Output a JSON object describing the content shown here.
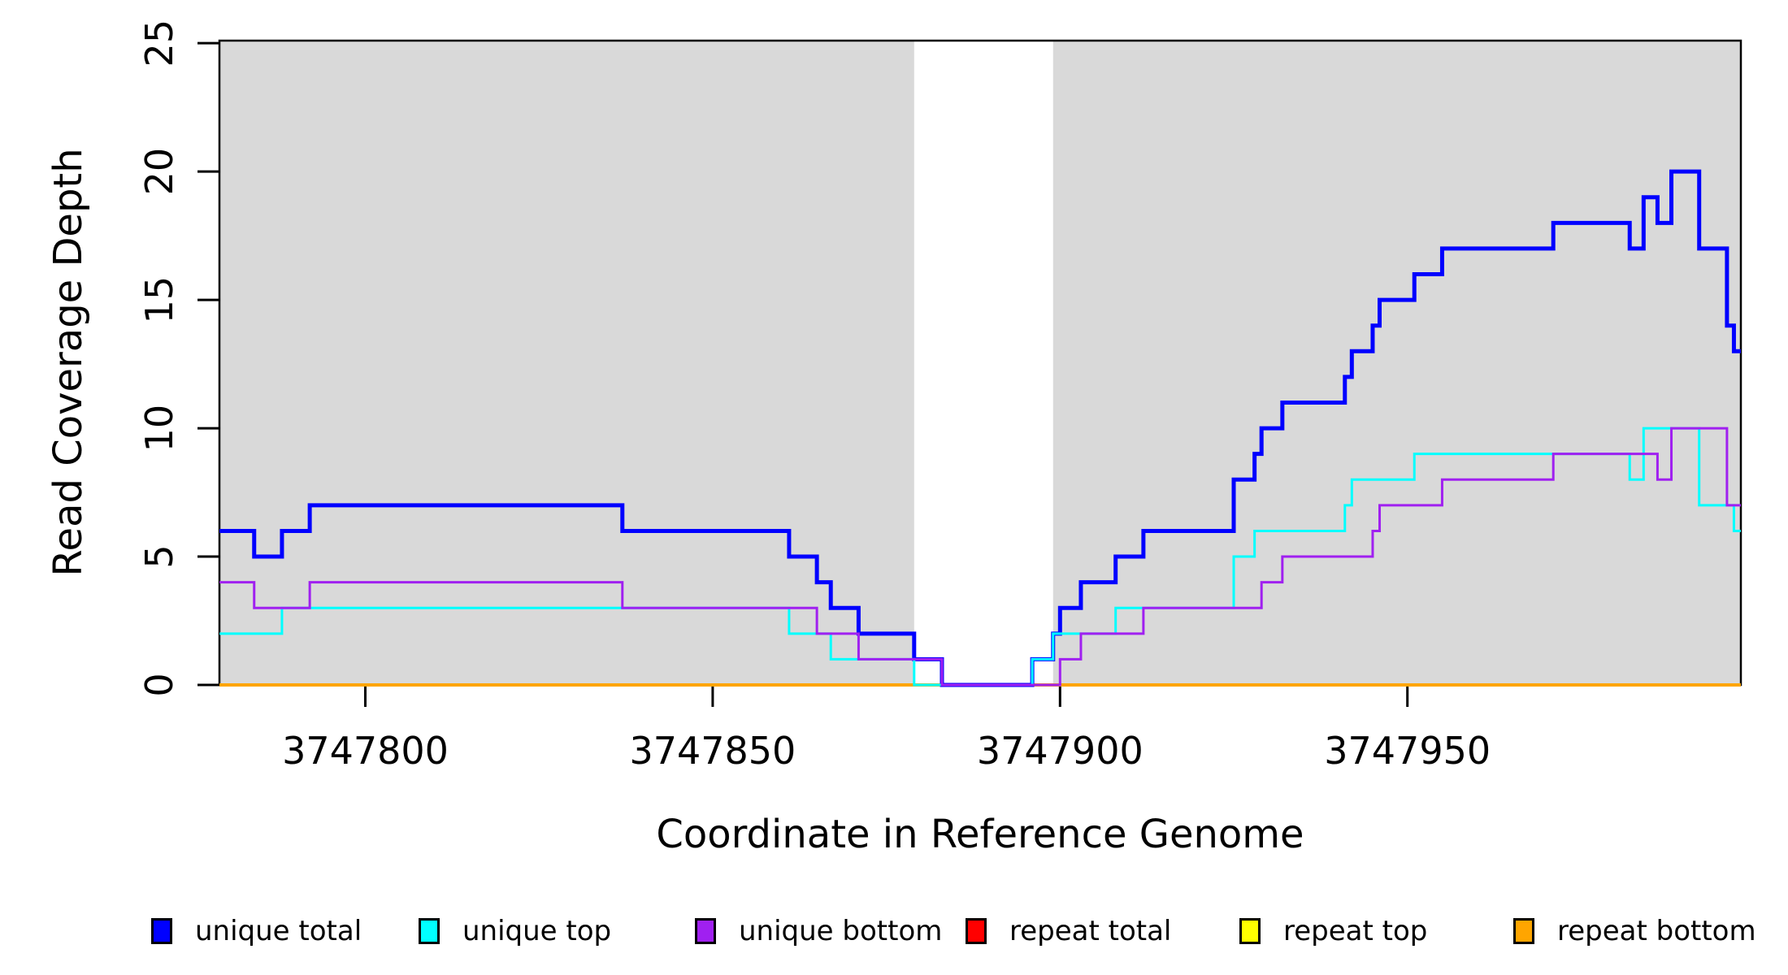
{
  "chart_data": {
    "type": "step-line",
    "title": "",
    "xlabel": "Coordinate in Reference Genome",
    "ylabel": "Read Coverage Depth",
    "xlim": [
      3747779,
      3747998
    ],
    "ylim": [
      0,
      25.1
    ],
    "xticks": [
      3747800,
      3747850,
      3747900,
      3747950
    ],
    "yticks": [
      0,
      5,
      10,
      15,
      20,
      25
    ],
    "grid": false,
    "shaded_regions": {
      "meaning": "repeat regions",
      "color": "#D9D9D9",
      "ranges": [
        [
          3747779,
          3747879
        ],
        [
          3747899,
          3747998
        ]
      ]
    },
    "series": [
      {
        "name": "unique total",
        "color": "#0000FF",
        "line_width": 5,
        "steps": [
          [
            3747779,
            6
          ],
          [
            3747784,
            5
          ],
          [
            3747788,
            6
          ],
          [
            3747792,
            7
          ],
          [
            3747837,
            6
          ],
          [
            3747861,
            5
          ],
          [
            3747865,
            4
          ],
          [
            3747867,
            3
          ],
          [
            3747871,
            2
          ],
          [
            3747879,
            1
          ],
          [
            3747883,
            0
          ],
          [
            3747896,
            1
          ],
          [
            3747899,
            2
          ],
          [
            3747900,
            3
          ],
          [
            3747903,
            4
          ],
          [
            3747908,
            5
          ],
          [
            3747912,
            6
          ],
          [
            3747925,
            8
          ],
          [
            3747928,
            9
          ],
          [
            3747929,
            10
          ],
          [
            3747932,
            11
          ],
          [
            3747941,
            12
          ],
          [
            3747942,
            13
          ],
          [
            3747945,
            14
          ],
          [
            3747946,
            15
          ],
          [
            3747951,
            16
          ],
          [
            3747955,
            17
          ],
          [
            3747971,
            18
          ],
          [
            3747982,
            17
          ],
          [
            3747984,
            19
          ],
          [
            3747986,
            18
          ],
          [
            3747988,
            20
          ],
          [
            3747992,
            17
          ],
          [
            3747996,
            14
          ],
          [
            3747997,
            13
          ],
          [
            3747998,
            13
          ]
        ]
      },
      {
        "name": "unique top",
        "color": "#00FFFF",
        "line_width": 3,
        "steps": [
          [
            3747779,
            2
          ],
          [
            3747788,
            3
          ],
          [
            3747861,
            2
          ],
          [
            3747867,
            1
          ],
          [
            3747879,
            0
          ],
          [
            3747896,
            1
          ],
          [
            3747899,
            2
          ],
          [
            3747908,
            3
          ],
          [
            3747925,
            5
          ],
          [
            3747928,
            6
          ],
          [
            3747941,
            7
          ],
          [
            3747942,
            8
          ],
          [
            3747951,
            9
          ],
          [
            3747982,
            8
          ],
          [
            3747984,
            10
          ],
          [
            3747992,
            7
          ],
          [
            3747997,
            6
          ],
          [
            3747998,
            6
          ]
        ]
      },
      {
        "name": "unique bottom",
        "color": "#A020F0",
        "line_width": 3,
        "steps": [
          [
            3747779,
            4
          ],
          [
            3747784,
            3
          ],
          [
            3747792,
            4
          ],
          [
            3747837,
            3
          ],
          [
            3747865,
            2
          ],
          [
            3747871,
            1
          ],
          [
            3747883,
            0
          ],
          [
            3747900,
            1
          ],
          [
            3747903,
            2
          ],
          [
            3747912,
            3
          ],
          [
            3747929,
            4
          ],
          [
            3747932,
            5
          ],
          [
            3747945,
            6
          ],
          [
            3747946,
            7
          ],
          [
            3747955,
            8
          ],
          [
            3747971,
            9
          ],
          [
            3747986,
            8
          ],
          [
            3747988,
            10
          ],
          [
            3747996,
            7
          ],
          [
            3747998,
            7
          ]
        ]
      },
      {
        "name": "repeat total",
        "color": "#FF0000",
        "line_width": 3,
        "steps": [
          [
            3747779,
            0
          ],
          [
            3747998,
            0
          ]
        ]
      },
      {
        "name": "repeat top",
        "color": "#FFFF00",
        "line_width": 3,
        "steps": [
          [
            3747779,
            0
          ],
          [
            3747998,
            0
          ]
        ]
      },
      {
        "name": "repeat bottom",
        "color": "#FFA500",
        "line_width": 4,
        "steps": [
          [
            3747779,
            0
          ],
          [
            3747998,
            0
          ]
        ]
      }
    ]
  },
  "legend": {
    "items": [
      {
        "label": "unique total",
        "color": "#0000FF"
      },
      {
        "label": "unique top",
        "color": "#00FFFF"
      },
      {
        "label": "unique bottom",
        "color": "#A020F0"
      },
      {
        "label": "repeat total",
        "color": "#FF0000"
      },
      {
        "label": "repeat top",
        "color": "#FFFF00"
      },
      {
        "label": "repeat bottom",
        "color": "#FFA500"
      }
    ]
  }
}
